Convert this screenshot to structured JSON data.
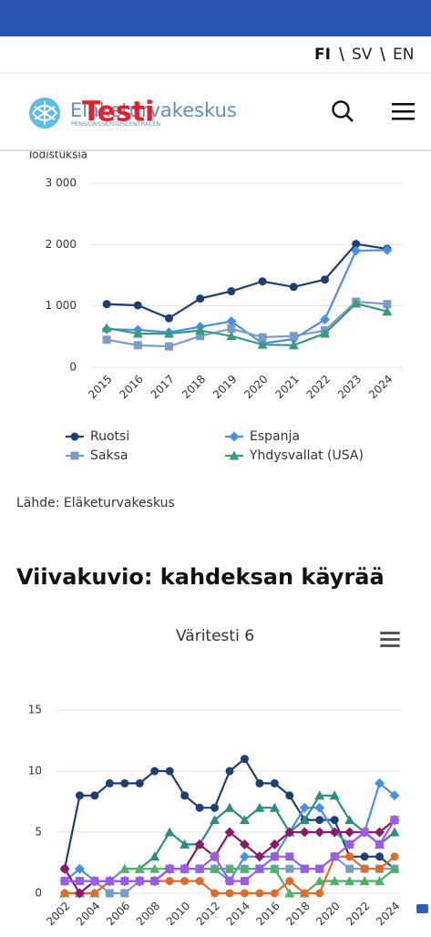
{
  "nav": {
    "languages": [
      "FI",
      "SV",
      "EN"
    ]
  },
  "logo": {
    "name": "Eläketurvakeskus",
    "subtitle": "PENSIONSSKYDDSCENTRALEN",
    "badge": "Testi"
  },
  "source": "Lähde: Eläketurvakeskus",
  "heading": "Viivakuvio: kahdeksan käyrää",
  "chart_data": [
    {
      "type": "line",
      "y_label": "Todistuksia",
      "categories": [
        "2015",
        "2016",
        "2017",
        "2018",
        "2019",
        "2020",
        "2021",
        "2022",
        "2023",
        "2024"
      ],
      "series": [
        {
          "name": "Ruotsi",
          "color": "#1f3f74",
          "marker": "circle",
          "values": [
            1030,
            1010,
            800,
            1120,
            1240,
            1400,
            1310,
            1430,
            2010,
            1930
          ]
        },
        {
          "name": "Espanja",
          "color": "#4a90e2",
          "marker": "diamond",
          "values": [
            620,
            610,
            570,
            660,
            750,
            390,
            460,
            780,
            1900,
            1910
          ]
        },
        {
          "name": "Saksa",
          "color": "#7a9cc6",
          "marker": "square",
          "values": [
            450,
            360,
            340,
            510,
            630,
            490,
            510,
            600,
            1070,
            1030
          ]
        },
        {
          "name": "Yhdysvallat (USA)",
          "color": "#3a9a80",
          "marker": "triangle",
          "values": [
            640,
            550,
            550,
            600,
            510,
            370,
            360,
            550,
            1040,
            910
          ]
        }
      ],
      "ylim": [
        0,
        3000
      ],
      "yticks": [
        0,
        {
          "value": 1000,
          "label": "1 000"
        },
        {
          "value": 2000,
          "label": "2 000"
        },
        {
          "value": 3000,
          "label": "3 000"
        }
      ],
      "grid": true,
      "legend": "bottom"
    },
    {
      "type": "line",
      "title": "Väritesti 6",
      "categories": [
        "2002",
        null,
        "2004",
        null,
        "2006",
        null,
        "2008",
        null,
        "2010",
        null,
        "2012",
        null,
        "2014",
        null,
        "2016",
        null,
        "2018",
        null,
        "2020",
        null,
        "2022",
        null,
        "2024"
      ],
      "series": [
        {
          "color": "#1f3f74",
          "marker": "circle",
          "values": [
            2,
            8,
            8,
            9,
            9,
            9,
            10,
            10,
            8,
            7,
            7,
            10,
            11,
            9,
            9,
            8,
            6,
            6,
            6,
            3,
            3,
            3,
            2
          ]
        },
        {
          "color": "#4a90e2",
          "marker": "diamond",
          "values": [
            1,
            2,
            1,
            1,
            1,
            1,
            1,
            2,
            2,
            2,
            2,
            1,
            3,
            3,
            3,
            5,
            7,
            7,
            5,
            4,
            5,
            9,
            8
          ]
        },
        {
          "color": "#7a9cc6",
          "marker": "square",
          "values": [
            1,
            1,
            1,
            0,
            0,
            1,
            1,
            2,
            2,
            2,
            2,
            2,
            2,
            2,
            2,
            2,
            2,
            2,
            3,
            2,
            2,
            2,
            2
          ]
        },
        {
          "color": "#2f8c80",
          "marker": "triangle",
          "values": [
            0,
            0,
            0,
            1,
            2,
            2,
            3,
            5,
            4,
            4,
            6,
            7,
            6,
            7,
            7,
            5,
            6,
            8,
            8,
            6,
            5,
            4,
            5
          ]
        },
        {
          "color": "#4fb06a",
          "marker": "triangle",
          "values": [
            0,
            0,
            0,
            1,
            2,
            2,
            2,
            2,
            2,
            2,
            2,
            2,
            2,
            2,
            2,
            0,
            0,
            1,
            1,
            1,
            1,
            1,
            2
          ]
        },
        {
          "color": "#e06c2c",
          "marker": "circle",
          "values": [
            0,
            0,
            0,
            1,
            1,
            1,
            1,
            1,
            1,
            1,
            0,
            0,
            0,
            0,
            0,
            1,
            0,
            0,
            3,
            3,
            2,
            2,
            3
          ]
        },
        {
          "color": "#8b1a6b",
          "marker": "diamond",
          "values": [
            2,
            0,
            1,
            1,
            1,
            1,
            1,
            2,
            2,
            4,
            3,
            5,
            4,
            3,
            4,
            5,
            5,
            5,
            5,
            5,
            5,
            5,
            6
          ]
        },
        {
          "color": "#9b5de5",
          "marker": "square",
          "values": [
            1,
            1,
            1,
            1,
            1,
            1,
            1,
            2,
            2,
            2,
            3,
            1,
            1,
            2,
            3,
            3,
            2,
            2,
            3,
            4,
            5,
            4,
            6
          ]
        }
      ],
      "ylim": [
        0,
        15
      ],
      "yticks": [
        0,
        5,
        10,
        15
      ],
      "grid": true
    }
  ]
}
